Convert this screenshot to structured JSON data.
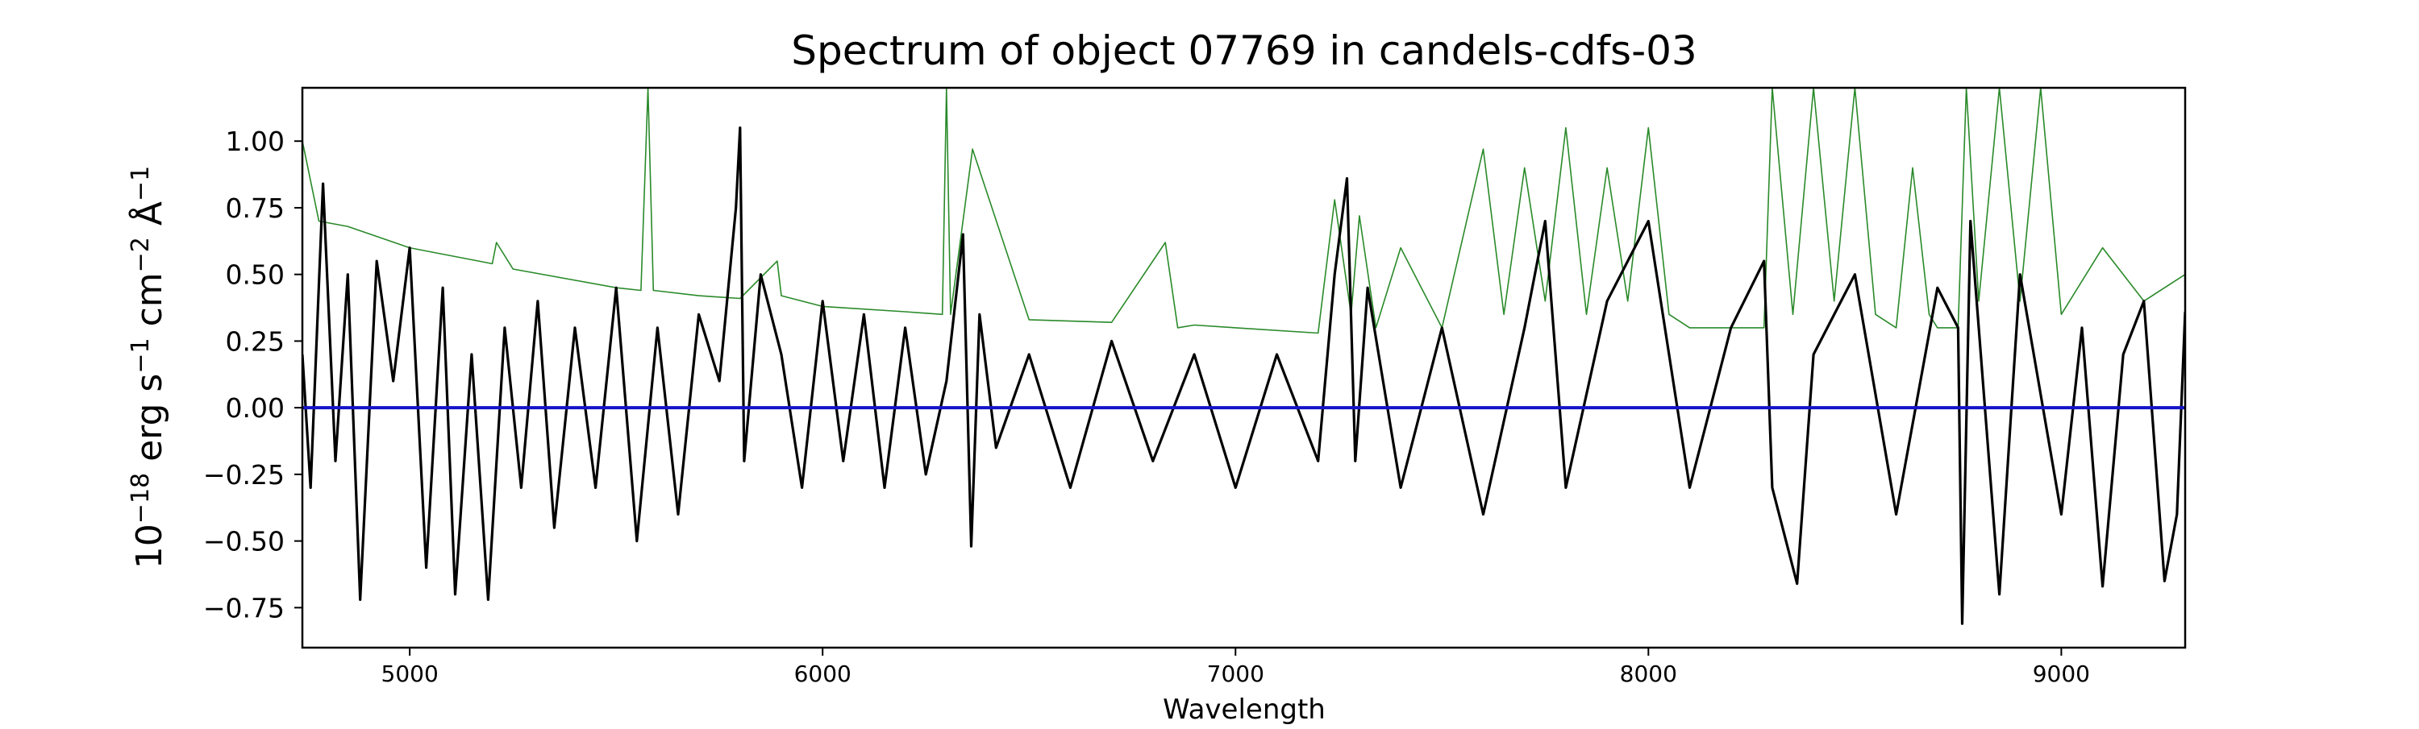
{
  "chart_data": {
    "type": "line",
    "title": "Spectrum of object 07769 in candels-cdfs-03",
    "xlabel": "Wavelength",
    "ylabel": {
      "base": "10",
      "exp1": "−18",
      "p1": " erg s",
      "exp2": "−1",
      "p2": " cm",
      "exp3": "−2",
      "p3": " Å",
      "exp4": "−1"
    },
    "xlim": [
      4740,
      9300
    ],
    "ylim": [
      -0.9,
      1.2
    ],
    "x_ticks": [
      5000,
      6000,
      7000,
      8000,
      9000
    ],
    "x_tick_labels": [
      "5000",
      "6000",
      "7000",
      "8000",
      "9000"
    ],
    "y_ticks": [
      1.0,
      0.75,
      0.5,
      0.25,
      0.0,
      -0.25,
      -0.5,
      -0.75
    ],
    "y_tick_labels": [
      "1.00",
      "0.75",
      "0.50",
      "0.25",
      "0.00",
      "−0.25",
      "−0.50",
      "−0.75"
    ],
    "grid": false,
    "series": [
      {
        "color": "#2a8a2a",
        "role": "error",
        "x": [
          4740,
          4780,
          4850,
          5000,
          5200,
          5210,
          5250,
          5500,
          5560,
          5577,
          5590,
          5700,
          5800,
          5890,
          5900,
          6000,
          6200,
          6290,
          6300,
          6310,
          6363,
          6500,
          6700,
          6830,
          6860,
          6900,
          7000,
          7200,
          7240,
          7280,
          7300,
          7340,
          7400,
          7500,
          7600,
          7650,
          7700,
          7750,
          7800,
          7850,
          7900,
          7950,
          8000,
          8050,
          8100,
          8200,
          8280,
          8300,
          8350,
          8400,
          8450,
          8500,
          8550,
          8600,
          8640,
          8680,
          8700,
          8750,
          8770,
          8800,
          8850,
          8900,
          8950,
          9000,
          9100,
          9200,
          9300
        ],
        "y": [
          1.0,
          0.7,
          0.68,
          0.6,
          0.54,
          0.62,
          0.52,
          0.45,
          0.44,
          1.2,
          0.44,
          0.42,
          0.41,
          0.55,
          0.42,
          0.38,
          0.36,
          0.35,
          1.2,
          0.35,
          0.97,
          0.33,
          0.32,
          0.62,
          0.3,
          0.31,
          0.3,
          0.28,
          0.78,
          0.35,
          0.72,
          0.3,
          0.6,
          0.3,
          0.97,
          0.35,
          0.9,
          0.4,
          1.05,
          0.35,
          0.9,
          0.4,
          1.05,
          0.35,
          0.3,
          0.3,
          0.3,
          1.2,
          0.35,
          1.2,
          0.4,
          1.2,
          0.35,
          0.3,
          0.9,
          0.35,
          0.3,
          0.3,
          1.2,
          0.4,
          1.2,
          0.4,
          1.2,
          0.35,
          0.6,
          0.4,
          0.5
        ]
      },
      {
        "color": "#000000",
        "role": "flux",
        "x": [
          4740,
          4760,
          4790,
          4820,
          4850,
          4880,
          4920,
          4960,
          5000,
          5040,
          5080,
          5110,
          5150,
          5190,
          5230,
          5270,
          5310,
          5350,
          5400,
          5450,
          5500,
          5550,
          5600,
          5650,
          5700,
          5750,
          5790,
          5800,
          5810,
          5850,
          5900,
          5950,
          6000,
          6050,
          6100,
          6150,
          6200,
          6250,
          6300,
          6340,
          6360,
          6380,
          6420,
          6500,
          6600,
          6700,
          6800,
          6900,
          7000,
          7100,
          7200,
          7240,
          7270,
          7290,
          7320,
          7400,
          7500,
          7600,
          7700,
          7750,
          7800,
          7900,
          8000,
          8100,
          8200,
          8280,
          8300,
          8360,
          8400,
          8500,
          8600,
          8700,
          8750,
          8760,
          8780,
          8800,
          8850,
          8900,
          9000,
          9050,
          9100,
          9150,
          9200,
          9250,
          9280,
          9300
        ],
        "y": [
          0.2,
          -0.3,
          0.84,
          -0.2,
          0.5,
          -0.72,
          0.55,
          0.1,
          0.6,
          -0.6,
          0.45,
          -0.7,
          0.2,
          -0.72,
          0.3,
          -0.3,
          0.4,
          -0.45,
          0.3,
          -0.3,
          0.45,
          -0.5,
          0.3,
          -0.4,
          0.35,
          0.1,
          0.75,
          1.05,
          -0.2,
          0.5,
          0.2,
          -0.3,
          0.4,
          -0.2,
          0.35,
          -0.3,
          0.3,
          -0.25,
          0.1,
          0.65,
          -0.52,
          0.35,
          -0.15,
          0.2,
          -0.3,
          0.25,
          -0.2,
          0.2,
          -0.3,
          0.2,
          -0.2,
          0.5,
          0.86,
          -0.2,
          0.45,
          -0.3,
          0.3,
          -0.4,
          0.3,
          0.7,
          -0.3,
          0.4,
          0.7,
          -0.3,
          0.3,
          0.55,
          -0.3,
          -0.66,
          0.2,
          0.5,
          -0.4,
          0.45,
          0.3,
          -0.81,
          0.7,
          0.3,
          -0.7,
          0.5,
          -0.4,
          0.3,
          -0.67,
          0.2,
          0.4,
          -0.65,
          -0.4,
          0.36
        ]
      },
      {
        "color": "#1414c8",
        "role": "zero",
        "x": [
          4740,
          9300
        ],
        "y": [
          0.0,
          0.0
        ]
      }
    ]
  }
}
